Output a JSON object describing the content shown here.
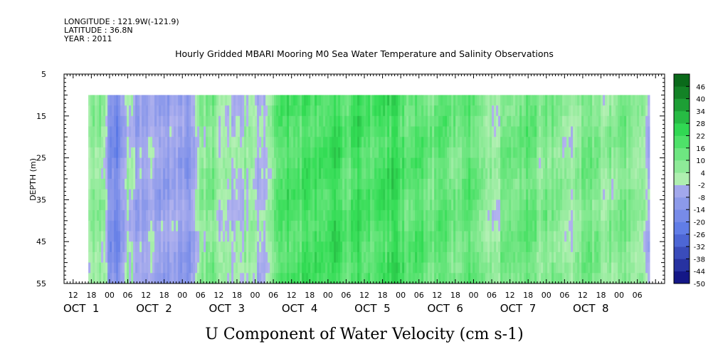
{
  "header": {
    "longitude": "LONGITUDE : 121.9W(-121.9)",
    "latitude": "LATITUDE : 36.8N",
    "year": "YEAR : 2011"
  },
  "chart_data": {
    "type": "heatmap",
    "title": "Hourly Gridded MBARI Mooring M0 Sea Water Temperature and Salinity Observations",
    "xlabel": "U Component of Water Velocity (cm s-1)",
    "ylabel": "DEPTH (m)",
    "y_inverted": true,
    "ylim": [
      5,
      55
    ],
    "y_ticks": [
      5,
      15,
      25,
      35,
      45,
      55
    ],
    "data_depth_range": [
      10,
      55
    ],
    "x_start": "2011-09-30T09:00",
    "x_end": "2011-10-08T15:00",
    "data_time_range": [
      "2011-09-30T17:00",
      "2011-10-08T10:00"
    ],
    "hour_tick_labels": [
      "12",
      "18",
      "00",
      "06",
      "12",
      "18",
      "00",
      "06",
      "12",
      "18",
      "00",
      "06",
      "12",
      "18",
      "00",
      "06",
      "12",
      "18",
      "00",
      "06",
      "12",
      "18",
      "00",
      "06",
      "12",
      "18",
      "00",
      "06",
      "12",
      "18",
      "00",
      "06"
    ],
    "day_labels": [
      "OCT  1",
      "OCT  2",
      "OCT  3",
      "OCT  4",
      "OCT  5",
      "OCT  6",
      "OCT  7",
      "OCT  8"
    ],
    "colorbar_labels": [
      "46",
      "40",
      "34",
      "28",
      "22",
      "16",
      "10",
      "4",
      "-2",
      "-8",
      "-14",
      "-20",
      "-26",
      "-32",
      "-38",
      "-44",
      "-50"
    ],
    "colorbar_min": -50,
    "colorbar_max": 52,
    "colorbar_step": 6,
    "time_profile": [
      {
        "t": "2011-09-30T17:00",
        "u": 6
      },
      {
        "t": "2011-09-30T22:00",
        "u": 5
      },
      {
        "t": "2011-10-01T00:00",
        "u": -14
      },
      {
        "t": "2011-10-01T03:00",
        "u": -17
      },
      {
        "t": "2011-10-01T06:00",
        "u": 3
      },
      {
        "t": "2011-10-01T09:00",
        "u": -6
      },
      {
        "t": "2011-10-01T14:00",
        "u": -4
      },
      {
        "t": "2011-10-01T18:00",
        "u": -8
      },
      {
        "t": "2011-10-01T22:00",
        "u": -3
      },
      {
        "t": "2011-10-02T02:00",
        "u": -12
      },
      {
        "t": "2011-10-02T06:00",
        "u": 6
      },
      {
        "t": "2011-10-02T10:00",
        "u": 9
      },
      {
        "t": "2011-10-02T14:00",
        "u": 1
      },
      {
        "t": "2011-10-02T18:00",
        "u": -2
      },
      {
        "t": "2011-10-02T22:00",
        "u": 5
      },
      {
        "t": "2011-10-03T02:00",
        "u": -5
      },
      {
        "t": "2011-10-03T06:00",
        "u": 10
      },
      {
        "t": "2011-10-03T10:00",
        "u": 20
      },
      {
        "t": "2011-10-03T14:00",
        "u": 16
      },
      {
        "t": "2011-10-03T18:00",
        "u": 22
      },
      {
        "t": "2011-10-03T22:00",
        "u": 18
      },
      {
        "t": "2011-10-04T02:00",
        "u": 26
      },
      {
        "t": "2011-10-04T06:00",
        "u": 14
      },
      {
        "t": "2011-10-04T10:00",
        "u": 22
      },
      {
        "t": "2011-10-04T14:00",
        "u": 16
      },
      {
        "t": "2011-10-04T18:00",
        "u": 20
      },
      {
        "t": "2011-10-04T22:00",
        "u": 24
      },
      {
        "t": "2011-10-05T02:00",
        "u": 15
      },
      {
        "t": "2011-10-05T06:00",
        "u": 20
      },
      {
        "t": "2011-10-05T10:00",
        "u": 12
      },
      {
        "t": "2011-10-05T14:00",
        "u": 18
      },
      {
        "t": "2011-10-05T18:00",
        "u": 10
      },
      {
        "t": "2011-10-05T22:00",
        "u": 16
      },
      {
        "t": "2011-10-06T02:00",
        "u": 12
      },
      {
        "t": "2011-10-06T06:00",
        "u": 5
      },
      {
        "t": "2011-10-06T08:00",
        "u": 3
      },
      {
        "t": "2011-10-06T10:00",
        "u": 14
      },
      {
        "t": "2011-10-06T14:00",
        "u": 10
      },
      {
        "t": "2011-10-06T18:00",
        "u": 16
      },
      {
        "t": "2011-10-06T22:00",
        "u": 8
      },
      {
        "t": "2011-10-07T02:00",
        "u": 12
      },
      {
        "t": "2011-10-07T06:00",
        "u": 1
      },
      {
        "t": "2011-10-07T10:00",
        "u": 6
      },
      {
        "t": "2011-10-07T14:00",
        "u": 14
      },
      {
        "t": "2011-10-07T18:00",
        "u": 5
      },
      {
        "t": "2011-10-07T22:00",
        "u": 8
      },
      {
        "t": "2011-10-08T02:00",
        "u": 10
      },
      {
        "t": "2011-10-08T06:00",
        "u": 5
      },
      {
        "t": "2011-10-08T10:00",
        "u": -2
      }
    ],
    "colors": {
      "positive_light": "#b4f0b4",
      "positive_mid": "#33dd55",
      "positive_dark": "#0a6a1a",
      "negative_light": "#b4b4ee",
      "negative_mid": "#5a78e6",
      "negative_dark": "#0a0a7a",
      "zero": "#cfe9cf"
    }
  }
}
